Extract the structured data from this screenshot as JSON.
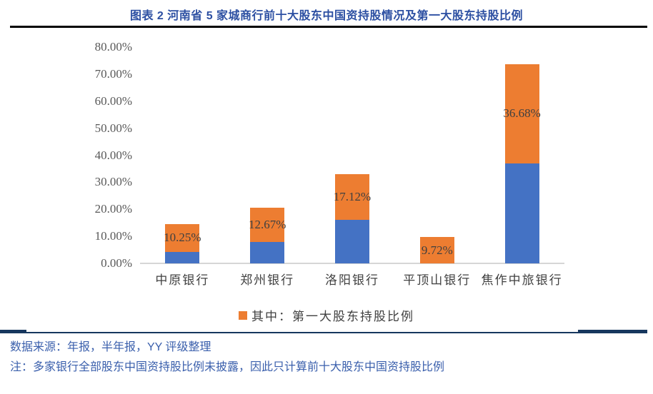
{
  "title": "图表 2 河南省 5 家城商行前十大股东中国资持股情况及第一大股东持股比例",
  "chart_data": {
    "type": "bar",
    "stacked": true,
    "title": "图表 2 河南省 5 家城商行前十大股东中国资持股情况及第一大股东持股比例",
    "categories": [
      "中原银行",
      "郑州银行",
      "洛阳银行",
      "平顶山银行",
      "焦作中旅银行"
    ],
    "series": [
      {
        "name": "",
        "color": "#4472C4",
        "values": [
          4.3,
          7.8,
          16.0,
          0,
          37.0
        ],
        "in_legend": false
      },
      {
        "name": "其中：第一大股东持股比例",
        "legend_label": "其中：第一大股东持股比例",
        "color": "#ED7D31",
        "values": [
          10.25,
          12.67,
          17.12,
          9.72,
          36.68
        ],
        "in_legend": true
      }
    ],
    "data_labels": [
      "10.25%",
      "12.67%",
      "17.12%",
      "9.72%",
      "36.68%"
    ],
    "y_ticks": [
      "0.00%",
      "10.00%",
      "20.00%",
      "30.00%",
      "40.00%",
      "50.00%",
      "60.00%",
      "70.00%",
      "80.00%"
    ],
    "ylim": [
      0,
      80
    ],
    "xlabel": "",
    "ylabel": "",
    "grid": false,
    "legend_position": "bottom"
  },
  "footer": {
    "source": "数据来源：年报，半年报，YY 评级整理",
    "note": "注：多家银行全部股东中国资持股比例未披露，因此只计算前十大股东中国资持股比例"
  },
  "colors": {
    "bar_blue": "#4472C4",
    "bar_orange": "#ED7D31",
    "title_text": "#2C4FA2",
    "footer_text": "#3A5FAC",
    "divider_navy": "#17375E",
    "title_rule_black": "#000000",
    "axis_text": "#595959",
    "data_label_text": "#404040",
    "baseline_gray": "#D6D6D6"
  }
}
